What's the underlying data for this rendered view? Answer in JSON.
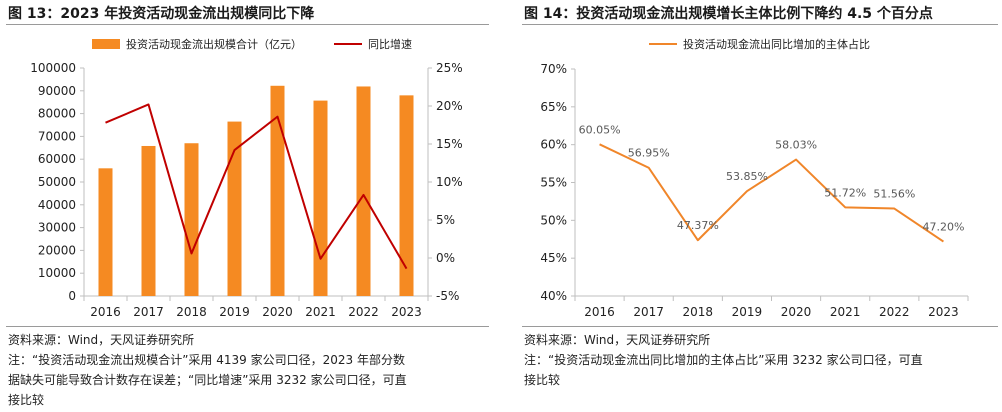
{
  "left": {
    "title": "图 13：2023 年投资活动现金流出规模同比下降",
    "source": "资料来源：Wind，天风证券研究所",
    "note_lines": [
      "注：“投资活动现金流出规模合计”采用 4139 家公司口径，2023 年部分数",
      "据缺失可能导致合计数存在误差；“同比增速”采用 3232 家公司口径，可直",
      "接比较"
    ]
  },
  "right": {
    "title": "图 14：投资活动现金流出规模增长主体比例下降约 4.5 个百分点",
    "source": "资料来源：Wind，天风证券研究所",
    "note_lines": [
      "注：“投资活动现金流出同比增加的主体占比”采用 3232 家公司口径，可直",
      "接比较"
    ]
  },
  "colors": {
    "bar": "#F58A22",
    "line_red": "#C00000",
    "line_orange": "#F0862A"
  },
  "chart_data": [
    {
      "type": "bar",
      "categories": [
        "2016",
        "2017",
        "2018",
        "2019",
        "2020",
        "2021",
        "2022",
        "2023"
      ],
      "series": [
        {
          "name": "投资活动现金流出规模合计（亿元）",
          "type": "bar",
          "axis": "left",
          "values": [
            56000,
            65800,
            67000,
            76500,
            92200,
            85700,
            91900,
            88000
          ]
        },
        {
          "name": "同比增速",
          "type": "line",
          "axis": "right",
          "values": [
            17.8,
            20.2,
            0.6,
            14.2,
            18.6,
            -0.1,
            8.3,
            -1.4
          ]
        }
      ],
      "y_left": {
        "ylim": [
          0,
          100000
        ],
        "ticks": [
          "0",
          "10000",
          "20000",
          "30000",
          "40000",
          "50000",
          "60000",
          "70000",
          "80000",
          "90000",
          "100000"
        ]
      },
      "y_right": {
        "ylim": [
          -5,
          25
        ],
        "ticks": [
          "-5%",
          "0%",
          "5%",
          "10%",
          "15%",
          "20%",
          "25%"
        ]
      },
      "legend": "top"
    },
    {
      "type": "line",
      "categories": [
        "2016",
        "2017",
        "2018",
        "2019",
        "2020",
        "2021",
        "2022",
        "2023"
      ],
      "series": [
        {
          "name": "投资活动现金流出同比增加的主体占比",
          "values": [
            60.05,
            56.95,
            47.37,
            53.85,
            58.03,
            51.72,
            51.56,
            47.2
          ],
          "labels": [
            "60.05%",
            "56.95%",
            "47.37%",
            "53.85%",
            "58.03%",
            "51.72%",
            "51.56%",
            "47.20%"
          ]
        }
      ],
      "ylim": [
        40,
        70
      ],
      "ticks": [
        "40%",
        "45%",
        "50%",
        "55%",
        "60%",
        "65%",
        "70%"
      ],
      "legend": "top"
    }
  ]
}
